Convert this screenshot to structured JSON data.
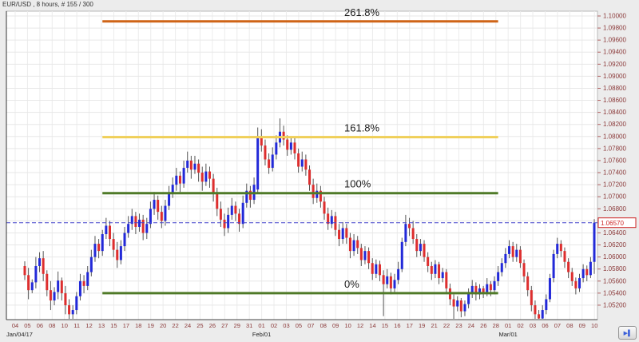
{
  "app": {
    "title": "EUR/USD , 8 hours, # 155 / 300"
  },
  "controls": {
    "step_forward_icon": "▶▌"
  },
  "colors": {
    "background": "#ececec",
    "plot_background": "#ffffff",
    "grid": "#e7e7e7",
    "axis_text": "#8b3a3a",
    "month_text": "#222222",
    "fib_label_text": "#1a1a1a",
    "current_price_red": "#cc2222"
  },
  "chart_data": {
    "type": "candlestick",
    "symbol": "EUR/USD",
    "timeframe": "8 hours",
    "bar_counter": "# 155 / 300",
    "style": {
      "up_color": "#2229d8",
      "down_color": "#dd2e2e",
      "wick_color": "#555555",
      "current_price_line_color": "#4444cc"
    },
    "price_axis": {
      "min": 1.052,
      "max": 1.1,
      "step": 0.002,
      "labels": [
        "1.10000",
        "1.09800",
        "1.09600",
        "1.09400",
        "1.09200",
        "1.09000",
        "1.08800",
        "1.08600",
        "1.08400",
        "1.08200",
        "1.08000",
        "1.07800",
        "1.07600",
        "1.07400",
        "1.07200",
        "1.07000",
        "1.06800",
        "1.06600",
        "1.06400",
        "1.06200",
        "1.06000",
        "1.05800",
        "1.05600",
        "1.05400",
        "1.05200"
      ]
    },
    "current_price": {
      "value": "1.06570",
      "pips": 657
    },
    "time_axis": {
      "labels": [
        "04",
        "05",
        "06",
        "08",
        "10",
        "11",
        "12",
        "13",
        "15",
        "17",
        "18",
        "19",
        "20",
        "22",
        "24",
        "25",
        "26",
        "27",
        "29",
        "31",
        "01",
        "02",
        "03",
        "05",
        "07",
        "08",
        "09",
        "10",
        "12",
        "14",
        "15",
        "16",
        "17",
        "19",
        "21",
        "22",
        "23",
        "24",
        "26",
        "28",
        "01",
        "02",
        "03",
        "06",
        "07",
        "08",
        "09",
        "10"
      ],
      "month_markers": [
        {
          "text": "Jan/04/17",
          "index": 0
        },
        {
          "text": "Feb/01",
          "index": 20
        },
        {
          "text": "Mar/01",
          "index": 40
        }
      ]
    },
    "fib_anchor": {
      "start_index": 21,
      "end_index": 128
    },
    "fib_levels": [
      {
        "label": "261.8%",
        "price": 1.0991,
        "color": "#cf6417"
      },
      {
        "label": "161.8%",
        "price": 1.0799,
        "color": "#f0cf57"
      },
      {
        "label": "100%",
        "price": 1.0706,
        "color": "#4f7a28"
      },
      {
        "label": "0%",
        "price": 1.054,
        "color": "#4f7a28"
      }
    ],
    "candles_unit": "price = 1.0 + value/10000 ; order [open,high,low,close]",
    "candles": [
      [
        585,
        593,
        562,
        570
      ],
      [
        570,
        582,
        530,
        545
      ],
      [
        545,
        563,
        540,
        558
      ],
      [
        558,
        600,
        548,
        585
      ],
      [
        585,
        608,
        575,
        598
      ],
      [
        598,
        610,
        560,
        572
      ],
      [
        572,
        578,
        535,
        545
      ],
      [
        545,
        560,
        512,
        528
      ],
      [
        528,
        550,
        520,
        542
      ],
      [
        542,
        576,
        530,
        561
      ],
      [
        561,
        566,
        528,
        540
      ],
      [
        540,
        552,
        505,
        520
      ],
      [
        520,
        530,
        494,
        505
      ],
      [
        505,
        520,
        496,
        512
      ],
      [
        512,
        542,
        505,
        535
      ],
      [
        535,
        572,
        528,
        560
      ],
      [
        560,
        570,
        540,
        552
      ],
      [
        552,
        585,
        545,
        575
      ],
      [
        575,
        612,
        568,
        600
      ],
      [
        600,
        635,
        592,
        622
      ],
      [
        622,
        630,
        598,
        610
      ],
      [
        610,
        645,
        602,
        638
      ],
      [
        638,
        665,
        630,
        652
      ],
      [
        652,
        660,
        618,
        630
      ],
      [
        630,
        640,
        600,
        612
      ],
      [
        612,
        625,
        582,
        595
      ],
      [
        595,
        628,
        588,
        618
      ],
      [
        618,
        650,
        610,
        640
      ],
      [
        640,
        668,
        632,
        655
      ],
      [
        655,
        680,
        645,
        668
      ],
      [
        668,
        675,
        638,
        650
      ],
      [
        650,
        672,
        642,
        662
      ],
      [
        662,
        670,
        628,
        640
      ],
      [
        640,
        665,
        630,
        655
      ],
      [
        655,
        692,
        648,
        680
      ],
      [
        680,
        708,
        670,
        695
      ],
      [
        695,
        702,
        662,
        675
      ],
      [
        675,
        685,
        648,
        660
      ],
      [
        660,
        695,
        652,
        685
      ],
      [
        685,
        718,
        678,
        705
      ],
      [
        705,
        732,
        698,
        720
      ],
      [
        720,
        748,
        710,
        735
      ],
      [
        735,
        742,
        708,
        722
      ],
      [
        722,
        760,
        715,
        748
      ],
      [
        748,
        775,
        740,
        760
      ],
      [
        760,
        768,
        730,
        745
      ],
      [
        745,
        768,
        738,
        755
      ],
      [
        755,
        762,
        725,
        740
      ],
      [
        740,
        750,
        710,
        725
      ],
      [
        725,
        755,
        718,
        742
      ],
      [
        742,
        750,
        715,
        730
      ],
      [
        730,
        738,
        692,
        705
      ],
      [
        705,
        715,
        668,
        680
      ],
      [
        680,
        692,
        650,
        662
      ],
      [
        662,
        672,
        635,
        648
      ],
      [
        648,
        682,
        640,
        670
      ],
      [
        670,
        698,
        662,
        685
      ],
      [
        685,
        692,
        660,
        672
      ],
      [
        672,
        680,
        642,
        655
      ],
      [
        655,
        702,
        648,
        690
      ],
      [
        690,
        722,
        682,
        710
      ],
      [
        710,
        718,
        682,
        695
      ],
      [
        695,
        732,
        688,
        720
      ],
      [
        712,
        815,
        705,
        800
      ],
      [
        800,
        812,
        775,
        785
      ],
      [
        785,
        795,
        752,
        762
      ],
      [
        762,
        772,
        738,
        748
      ],
      [
        748,
        782,
        742,
        770
      ],
      [
        770,
        802,
        762,
        790
      ],
      [
        790,
        830,
        782,
        808
      ],
      [
        808,
        818,
        785,
        795
      ],
      [
        795,
        802,
        768,
        778
      ],
      [
        778,
        800,
        770,
        790
      ],
      [
        790,
        798,
        762,
        772
      ],
      [
        772,
        780,
        740,
        750
      ],
      [
        750,
        775,
        742,
        762
      ],
      [
        762,
        770,
        735,
        745
      ],
      [
        745,
        752,
        710,
        720
      ],
      [
        720,
        730,
        688,
        698
      ],
      [
        698,
        722,
        690,
        710
      ],
      [
        710,
        718,
        682,
        692
      ],
      [
        692,
        700,
        662,
        672
      ],
      [
        672,
        682,
        645,
        655
      ],
      [
        655,
        678,
        648,
        668
      ],
      [
        668,
        675,
        635,
        645
      ],
      [
        645,
        655,
        618,
        630
      ],
      [
        630,
        658,
        622,
        648
      ],
      [
        648,
        655,
        622,
        632
      ],
      [
        632,
        640,
        598,
        610
      ],
      [
        610,
        638,
        602,
        628
      ],
      [
        628,
        635,
        605,
        615
      ],
      [
        615,
        622,
        585,
        595
      ],
      [
        595,
        618,
        588,
        610
      ],
      [
        610,
        616,
        580,
        590
      ],
      [
        590,
        598,
        562,
        572
      ],
      [
        572,
        596,
        565,
        588
      ],
      [
        588,
        594,
        560,
        570
      ],
      [
        570,
        578,
        502,
        555
      ],
      [
        555,
        580,
        548,
        568
      ],
      [
        568,
        574,
        538,
        548
      ],
      [
        548,
        572,
        542,
        562
      ],
      [
        562,
        592,
        555,
        580
      ],
      [
        580,
        632,
        575,
        625
      ],
      [
        625,
        670,
        618,
        655
      ],
      [
        655,
        665,
        635,
        648
      ],
      [
        648,
        660,
        622,
        630
      ],
      [
        630,
        638,
        600,
        610
      ],
      [
        610,
        630,
        602,
        622
      ],
      [
        622,
        628,
        592,
        600
      ],
      [
        600,
        608,
        575,
        585
      ],
      [
        585,
        592,
        562,
        572
      ],
      [
        572,
        595,
        565,
        588
      ],
      [
        588,
        592,
        555,
        565
      ],
      [
        565,
        582,
        558,
        575
      ],
      [
        575,
        580,
        540,
        548
      ],
      [
        548,
        556,
        520,
        530
      ],
      [
        530,
        538,
        494,
        518
      ],
      [
        518,
        535,
        510,
        528
      ],
      [
        528,
        532,
        500,
        510
      ],
      [
        510,
        528,
        502,
        522
      ],
      [
        522,
        548,
        515,
        540
      ],
      [
        540,
        562,
        532,
        552
      ],
      [
        552,
        558,
        528,
        538
      ],
      [
        538,
        555,
        530,
        548
      ],
      [
        548,
        552,
        532,
        542
      ],
      [
        542,
        565,
        535,
        555
      ],
      [
        555,
        560,
        535,
        545
      ],
      [
        545,
        568,
        538,
        560
      ],
      [
        560,
        585,
        552,
        575
      ],
      [
        575,
        598,
        568,
        590
      ],
      [
        590,
        615,
        582,
        605
      ],
      [
        605,
        628,
        598,
        618
      ],
      [
        618,
        625,
        592,
        600
      ],
      [
        600,
        622,
        592,
        612
      ],
      [
        612,
        618,
        582,
        590
      ],
      [
        590,
        596,
        558,
        568
      ],
      [
        568,
        575,
        535,
        545
      ],
      [
        545,
        552,
        510,
        520
      ],
      [
        520,
        528,
        496,
        505
      ],
      [
        505,
        512,
        492,
        498
      ],
      [
        498,
        520,
        494,
        512
      ],
      [
        512,
        538,
        505,
        530
      ],
      [
        530,
        572,
        525,
        565
      ],
      [
        565,
        612,
        558,
        605
      ],
      [
        605,
        632,
        598,
        622
      ],
      [
        622,
        628,
        600,
        610
      ],
      [
        610,
        616,
        582,
        592
      ],
      [
        592,
        598,
        565,
        575
      ],
      [
        575,
        582,
        552,
        560
      ],
      [
        560,
        566,
        538,
        548
      ],
      [
        548,
        572,
        542,
        565
      ],
      [
        565,
        588,
        558,
        580
      ],
      [
        580,
        586,
        560,
        570
      ],
      [
        570,
        600,
        565,
        592
      ],
      [
        592,
        663,
        572,
        657
      ]
    ]
  }
}
